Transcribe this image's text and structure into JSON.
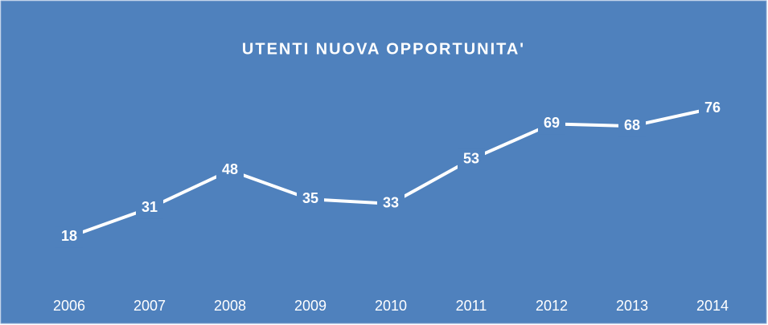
{
  "chart_data": {
    "type": "line",
    "title": "UTENTI NUOVA OPPORTUNITA'",
    "categories": [
      "2006",
      "2007",
      "2008",
      "2009",
      "2010",
      "2011",
      "2012",
      "2013",
      "2014"
    ],
    "values": [
      18,
      31,
      48,
      35,
      33,
      53,
      69,
      68,
      76
    ],
    "color": "#ffffff",
    "background": "#4f81bd",
    "drop_lines": true
  }
}
